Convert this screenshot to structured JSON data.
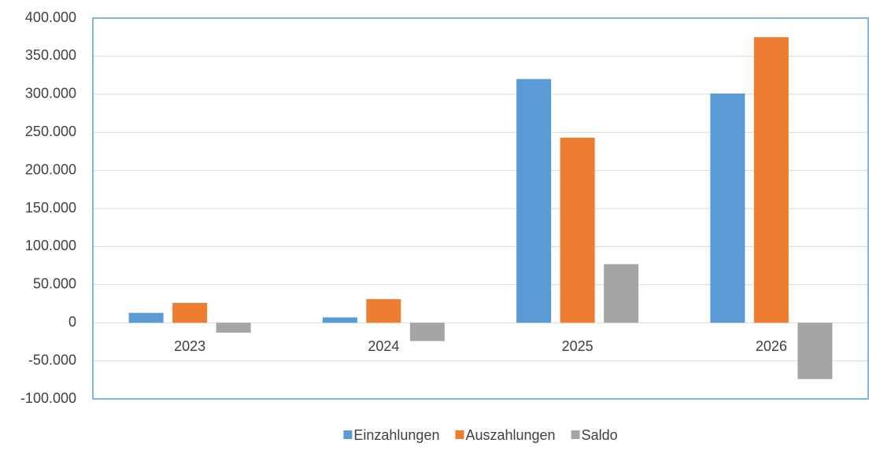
{
  "chart_data": {
    "type": "bar",
    "categories": [
      "2023",
      "2024",
      "2025",
      "2026"
    ],
    "series": [
      {
        "name": "Einzahlungen",
        "color": "#5b9bd5",
        "values": [
          13000,
          7000,
          320000,
          301000
        ]
      },
      {
        "name": "Auszahlungen",
        "color": "#ed7d31",
        "values": [
          26000,
          31000,
          243000,
          375000
        ]
      },
      {
        "name": "Saldo",
        "color": "#a5a5a5",
        "values": [
          -13000,
          -24000,
          77000,
          -74000
        ]
      }
    ],
    "ylim": [
      -100000,
      400000
    ],
    "yticks": [
      {
        "value": -100000,
        "label": "-100.000"
      },
      {
        "value": -50000,
        "label": "-50.000"
      },
      0,
      {
        "value": 50000,
        "label": "50.000"
      },
      {
        "value": 100000,
        "label": "100.000"
      },
      {
        "value": 150000,
        "label": "150.000"
      },
      {
        "value": 200000,
        "label": "200.000"
      },
      {
        "value": 250000,
        "label": "250.000"
      },
      {
        "value": 300000,
        "label": "300.000"
      },
      {
        "value": 350000,
        "label": "350.000"
      },
      {
        "value": 400000,
        "label": "400.000"
      }
    ],
    "grid": true,
    "legend": "bottom"
  }
}
